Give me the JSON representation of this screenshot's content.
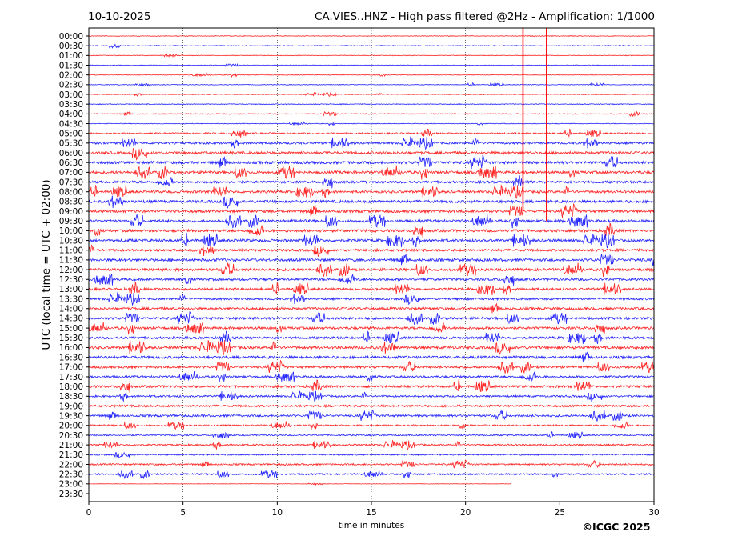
{
  "chart_data": {
    "type": "line",
    "subtype": "helicorder",
    "title_left": "10-10-2025",
    "title_right": "CA.VIES..HNZ - High pass filtered @2Hz - Amplification: 1/1000",
    "xlabel": "time in minutes",
    "ylabel": "UTC (local time = UTC + 02:00)",
    "xlim": [
      0,
      30
    ],
    "xticks": [
      "0",
      "5",
      "10",
      "15",
      "20",
      "25",
      "30"
    ],
    "grid": "vertical dotted at every 5 minutes",
    "colors": {
      "even_row": "#ff0000",
      "odd_row": "#0000ff"
    },
    "rows": [
      {
        "label": "00:00",
        "level": 0.25,
        "end": 30
      },
      {
        "label": "00:30",
        "level": 0.3,
        "end": 30
      },
      {
        "label": "01:00",
        "level": 0.25,
        "end": 30
      },
      {
        "label": "01:30",
        "level": 0.25,
        "end": 30
      },
      {
        "label": "02:00",
        "level": 0.25,
        "end": 30
      },
      {
        "label": "02:30",
        "level": 0.25,
        "end": 30
      },
      {
        "label": "03:00",
        "level": 0.25,
        "end": 30
      },
      {
        "label": "03:30",
        "level": 0.3,
        "end": 30
      },
      {
        "label": "04:00",
        "level": 0.35,
        "end": 30
      },
      {
        "label": "04:30",
        "level": 0.25,
        "end": 30
      },
      {
        "label": "05:00",
        "level": 0.6,
        "end": 30
      },
      {
        "label": "05:30",
        "level": 0.8,
        "end": 30
      },
      {
        "label": "06:00",
        "level": 1.0,
        "end": 30
      },
      {
        "label": "06:30",
        "level": 1.0,
        "end": 30
      },
      {
        "label": "07:00",
        "level": 1.0,
        "end": 30
      },
      {
        "label": "07:30",
        "level": 0.9,
        "end": 30
      },
      {
        "label": "08:00",
        "level": 0.9,
        "end": 30
      },
      {
        "label": "08:30",
        "level": 1.0,
        "end": 30
      },
      {
        "label": "09:00",
        "level": 1.0,
        "end": 30
      },
      {
        "label": "09:30",
        "level": 1.0,
        "end": 30
      },
      {
        "label": "10:00",
        "level": 1.0,
        "end": 30
      },
      {
        "label": "10:30",
        "level": 1.0,
        "end": 30
      },
      {
        "label": "11:00",
        "level": 0.9,
        "end": 30
      },
      {
        "label": "11:30",
        "level": 1.0,
        "end": 30
      },
      {
        "label": "12:00",
        "level": 1.0,
        "end": 30
      },
      {
        "label": "12:30",
        "level": 0.9,
        "end": 30
      },
      {
        "label": "13:00",
        "level": 0.9,
        "end": 30
      },
      {
        "label": "13:30",
        "level": 0.8,
        "end": 30
      },
      {
        "label": "14:00",
        "level": 0.9,
        "end": 30
      },
      {
        "label": "14:30",
        "level": 0.9,
        "end": 30
      },
      {
        "label": "15:00",
        "level": 0.9,
        "end": 30
      },
      {
        "label": "15:30",
        "level": 0.9,
        "end": 30
      },
      {
        "label": "16:00",
        "level": 1.0,
        "end": 30
      },
      {
        "label": "16:30",
        "level": 1.0,
        "end": 30
      },
      {
        "label": "17:00",
        "level": 0.9,
        "end": 30
      },
      {
        "label": "17:30",
        "level": 0.8,
        "end": 30
      },
      {
        "label": "18:00",
        "level": 0.9,
        "end": 30
      },
      {
        "label": "18:30",
        "level": 0.7,
        "end": 30
      },
      {
        "label": "19:00",
        "level": 0.8,
        "end": 30
      },
      {
        "label": "19:30",
        "level": 0.8,
        "end": 30
      },
      {
        "label": "20:00",
        "level": 0.6,
        "end": 30
      },
      {
        "label": "20:30",
        "level": 0.5,
        "end": 30
      },
      {
        "label": "21:00",
        "level": 0.6,
        "end": 30
      },
      {
        "label": "21:30",
        "level": 0.5,
        "end": 30
      },
      {
        "label": "22:00",
        "level": 0.6,
        "end": 30
      },
      {
        "label": "22:30",
        "level": 0.6,
        "end": 30
      },
      {
        "label": "23:00",
        "level": 0.15,
        "end": 22.4
      },
      {
        "label": "23:30",
        "level": 0,
        "end": 0
      }
    ],
    "events": [
      {
        "minute": 23.05,
        "from_row": "00:00",
        "to_row": "09:00"
      },
      {
        "minute": 24.3,
        "from_row": "00:00",
        "to_row": "09:30"
      }
    ]
  },
  "footer": {
    "copyright": "©ICGC 2025"
  }
}
